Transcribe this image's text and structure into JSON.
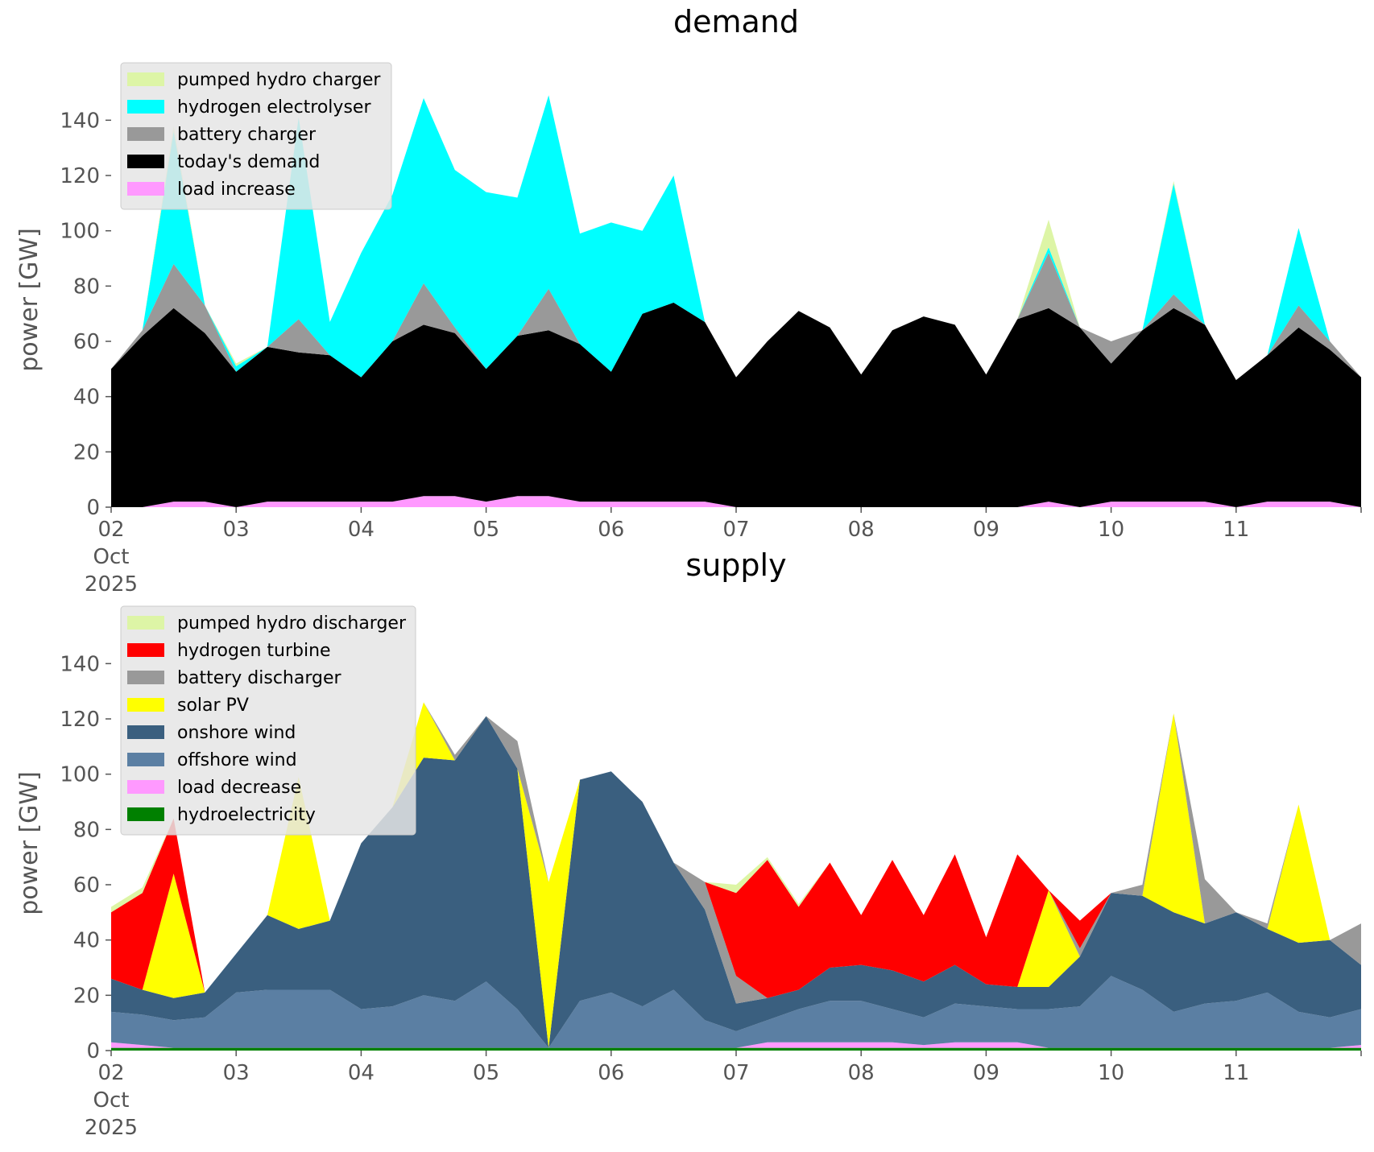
{
  "chart_data": [
    {
      "type": "area",
      "stacked": true,
      "title": "demand",
      "xlabel": "",
      "ylabel": "power [GW]",
      "x_range": [
        "2025-10-02 00:00",
        "2025-10-12 00:00"
      ],
      "x_ticks": [
        {
          "date": "2025-10-02",
          "label": "02"
        },
        {
          "date": "2025-10-03",
          "label": "03"
        },
        {
          "date": "2025-10-04",
          "label": "04"
        },
        {
          "date": "2025-10-05",
          "label": "05"
        },
        {
          "date": "2025-10-06",
          "label": "06"
        },
        {
          "date": "2025-10-07",
          "label": "07"
        },
        {
          "date": "2025-10-08",
          "label": "08"
        },
        {
          "date": "2025-10-09",
          "label": "09"
        },
        {
          "date": "2025-10-10",
          "label": "10"
        },
        {
          "date": "2025-10-11",
          "label": "11"
        }
      ],
      "x_subtick": [
        "Oct",
        "2025"
      ],
      "ylim": [
        0,
        150
      ],
      "y_ticks": [
        0,
        20,
        40,
        60,
        80,
        100,
        120,
        140
      ],
      "grid": false,
      "legend_position": "top-left",
      "x_dates": [
        "2025-10-02 00:00",
        "2025-10-02 06:00",
        "2025-10-02 12:00",
        "2025-10-02 18:00",
        "2025-10-03 00:00",
        "2025-10-03 06:00",
        "2025-10-03 12:00",
        "2025-10-03 18:00",
        "2025-10-04 00:00",
        "2025-10-04 06:00",
        "2025-10-04 12:00",
        "2025-10-04 18:00",
        "2025-10-05 00:00",
        "2025-10-05 06:00",
        "2025-10-05 12:00",
        "2025-10-05 18:00",
        "2025-10-06 00:00",
        "2025-10-06 06:00",
        "2025-10-06 12:00",
        "2025-10-06 18:00",
        "2025-10-07 00:00",
        "2025-10-07 06:00",
        "2025-10-07 12:00",
        "2025-10-07 18:00",
        "2025-10-08 00:00",
        "2025-10-08 06:00",
        "2025-10-08 12:00",
        "2025-10-08 18:00",
        "2025-10-09 00:00",
        "2025-10-09 06:00",
        "2025-10-09 12:00",
        "2025-10-09 18:00",
        "2025-10-10 00:00",
        "2025-10-10 06:00",
        "2025-10-10 12:00",
        "2025-10-10 18:00",
        "2025-10-11 00:00",
        "2025-10-11 06:00",
        "2025-10-11 12:00",
        "2025-10-11 18:00",
        "2025-10-12 00:00"
      ],
      "series": [
        {
          "name": "load increase",
          "color": "#ff99ff",
          "values": [
            0,
            0,
            2,
            2,
            0,
            2,
            2,
            2,
            2,
            2,
            4,
            4,
            2,
            4,
            4,
            2,
            2,
            2,
            2,
            2,
            0,
            0,
            0,
            0,
            0,
            0,
            0,
            0,
            0,
            0,
            2,
            0,
            2,
            2,
            2,
            2,
            0,
            2,
            2,
            2,
            0
          ]
        },
        {
          "name": "today's demand",
          "color": "#000000",
          "values": [
            50,
            62,
            70,
            61,
            49,
            56,
            54,
            53,
            45,
            58,
            62,
            59,
            48,
            58,
            60,
            57,
            47,
            68,
            72,
            65,
            47,
            60,
            71,
            65,
            48,
            64,
            69,
            66,
            48,
            68,
            70,
            65,
            50,
            62,
            70,
            64,
            46,
            53,
            63,
            55,
            47
          ]
        },
        {
          "name": "battery charger",
          "color": "#999999",
          "values": [
            0,
            2,
            16,
            10,
            0,
            0,
            12,
            0,
            0,
            0,
            15,
            2,
            0,
            0,
            15,
            0,
            0,
            0,
            0,
            0,
            0,
            0,
            0,
            0,
            0,
            0,
            0,
            0,
            0,
            0,
            20,
            0,
            8,
            0,
            5,
            0,
            0,
            0,
            8,
            3,
            0
          ]
        },
        {
          "name": "hydrogen electrolyser",
          "color": "#00ffff",
          "values": [
            0,
            0,
            48,
            0,
            2,
            0,
            73,
            12,
            45,
            53,
            67,
            57,
            64,
            50,
            70,
            40,
            54,
            30,
            46,
            0,
            0,
            0,
            0,
            0,
            0,
            0,
            0,
            0,
            0,
            0,
            2,
            0,
            0,
            0,
            40,
            0,
            0,
            0,
            28,
            0,
            0
          ]
        },
        {
          "name": "pumped hydro charger",
          "color": "#ddf5a6",
          "values": [
            0,
            0,
            2,
            0,
            1,
            0,
            0,
            0,
            0,
            0,
            0,
            0,
            0,
            0,
            0,
            0,
            0,
            0,
            0,
            0,
            0,
            0,
            0,
            0,
            0,
            0,
            0,
            0,
            0,
            0,
            10,
            0,
            0,
            0,
            1,
            0,
            0,
            0,
            0,
            0,
            0
          ]
        }
      ],
      "legend_order": [
        "pumped hydro charger",
        "hydrogen electrolyser",
        "battery charger",
        "today's demand",
        "load increase"
      ]
    },
    {
      "type": "area",
      "stacked": true,
      "title": "supply",
      "xlabel": "",
      "ylabel": "power [GW]",
      "x_range": [
        "2025-10-02 00:00",
        "2025-10-12 00:00"
      ],
      "x_ticks": [
        {
          "date": "2025-10-02",
          "label": "02"
        },
        {
          "date": "2025-10-03",
          "label": "03"
        },
        {
          "date": "2025-10-04",
          "label": "04"
        },
        {
          "date": "2025-10-05",
          "label": "05"
        },
        {
          "date": "2025-10-06",
          "label": "06"
        },
        {
          "date": "2025-10-07",
          "label": "07"
        },
        {
          "date": "2025-10-08",
          "label": "08"
        },
        {
          "date": "2025-10-09",
          "label": "09"
        },
        {
          "date": "2025-10-10",
          "label": "10"
        },
        {
          "date": "2025-10-11",
          "label": "11"
        }
      ],
      "x_subtick": [
        "Oct",
        "2025"
      ],
      "ylim": [
        0,
        150
      ],
      "y_ticks": [
        0,
        20,
        40,
        60,
        80,
        100,
        120,
        140
      ],
      "grid": false,
      "legend_position": "top-left",
      "x_dates": [
        "2025-10-02 00:00",
        "2025-10-02 06:00",
        "2025-10-02 12:00",
        "2025-10-02 18:00",
        "2025-10-03 00:00",
        "2025-10-03 06:00",
        "2025-10-03 12:00",
        "2025-10-03 18:00",
        "2025-10-04 00:00",
        "2025-10-04 06:00",
        "2025-10-04 12:00",
        "2025-10-04 18:00",
        "2025-10-05 00:00",
        "2025-10-05 06:00",
        "2025-10-05 12:00",
        "2025-10-05 18:00",
        "2025-10-06 00:00",
        "2025-10-06 06:00",
        "2025-10-06 12:00",
        "2025-10-06 18:00",
        "2025-10-07 00:00",
        "2025-10-07 06:00",
        "2025-10-07 12:00",
        "2025-10-07 18:00",
        "2025-10-08 00:00",
        "2025-10-08 06:00",
        "2025-10-08 12:00",
        "2025-10-08 18:00",
        "2025-10-09 00:00",
        "2025-10-09 06:00",
        "2025-10-09 12:00",
        "2025-10-09 18:00",
        "2025-10-10 00:00",
        "2025-10-10 06:00",
        "2025-10-10 12:00",
        "2025-10-10 18:00",
        "2025-10-11 00:00",
        "2025-10-11 06:00",
        "2025-10-11 12:00",
        "2025-10-11 18:00",
        "2025-10-12 00:00"
      ],
      "series": [
        {
          "name": "hydroelectricity",
          "color": "#008000",
          "values": [
            1,
            1,
            1,
            1,
            1,
            1,
            1,
            1,
            1,
            1,
            1,
            1,
            1,
            1,
            1,
            1,
            1,
            1,
            1,
            1,
            1,
            1,
            1,
            1,
            1,
            1,
            1,
            1,
            1,
            1,
            1,
            1,
            1,
            1,
            1,
            1,
            1,
            1,
            1,
            1,
            1
          ]
        },
        {
          "name": "load decrease",
          "color": "#ff99ff",
          "values": [
            2,
            1,
            0,
            0,
            0,
            0,
            0,
            0,
            0,
            0,
            0,
            0,
            0,
            0,
            0,
            0,
            0,
            0,
            0,
            0,
            0,
            2,
            2,
            2,
            2,
            2,
            1,
            2,
            2,
            2,
            0,
            0,
            0,
            0,
            0,
            0,
            0,
            0,
            0,
            0,
            1
          ]
        },
        {
          "name": "offshore wind",
          "color": "#5b7fa3",
          "values": [
            11,
            11,
            10,
            11,
            20,
            21,
            21,
            21,
            14,
            15,
            19,
            17,
            24,
            14,
            0,
            17,
            20,
            15,
            21,
            10,
            6,
            8,
            12,
            15,
            15,
            12,
            10,
            14,
            13,
            12,
            14,
            15,
            26,
            21,
            13,
            16,
            17,
            20,
            13,
            11,
            13
          ]
        },
        {
          "name": "onshore wind",
          "color": "#3a5f7f",
          "values": [
            12,
            9,
            8,
            9,
            14,
            27,
            22,
            25,
            60,
            72,
            86,
            87,
            96,
            87,
            0,
            80,
            80,
            74,
            46,
            40,
            10,
            8,
            7,
            12,
            13,
            14,
            13,
            14,
            8,
            8,
            8,
            18,
            30,
            34,
            36,
            29,
            32,
            23,
            25,
            28,
            16
          ]
        },
        {
          "name": "solar PV",
          "color": "#ffff00",
          "values": [
            0,
            0,
            45,
            0,
            0,
            0,
            55,
            0,
            0,
            0,
            20,
            0,
            0,
            0,
            60,
            0,
            0,
            0,
            0,
            0,
            0,
            0,
            0,
            0,
            0,
            0,
            0,
            0,
            0,
            0,
            35,
            0,
            0,
            0,
            72,
            0,
            0,
            0,
            50,
            0,
            0
          ]
        },
        {
          "name": "battery discharger",
          "color": "#999999",
          "values": [
            0,
            0,
            0,
            0,
            0,
            0,
            0,
            0,
            0,
            0,
            0,
            2,
            0,
            10,
            0,
            0,
            0,
            0,
            0,
            10,
            10,
            0,
            0,
            0,
            0,
            0,
            0,
            0,
            0,
            0,
            0,
            3,
            0,
            4,
            0,
            16,
            0,
            2,
            0,
            0,
            15
          ]
        },
        {
          "name": "hydrogen turbine",
          "color": "#ff0000",
          "values": [
            24,
            35,
            20,
            0,
            0,
            0,
            0,
            0,
            0,
            0,
            0,
            0,
            0,
            0,
            0,
            0,
            0,
            0,
            0,
            0,
            30,
            50,
            30,
            38,
            18,
            40,
            24,
            40,
            17,
            48,
            0,
            10,
            0,
            0,
            0,
            0,
            0,
            0,
            0,
            0,
            0
          ]
        },
        {
          "name": "pumped hydro discharger",
          "color": "#ddf5a6",
          "values": [
            2,
            2,
            0,
            0,
            0,
            0,
            0,
            0,
            0,
            0,
            0,
            0,
            0,
            0,
            0,
            0,
            0,
            0,
            0,
            0,
            3,
            1,
            1,
            0,
            0,
            0,
            0,
            0,
            0,
            0,
            0,
            0,
            0,
            0,
            0,
            0,
            0,
            0,
            0,
            0,
            0
          ]
        }
      ],
      "legend_order": [
        "pumped hydro discharger",
        "hydrogen turbine",
        "battery discharger",
        "solar PV",
        "onshore wind",
        "offshore wind",
        "load decrease",
        "hydroelectricity"
      ]
    }
  ]
}
